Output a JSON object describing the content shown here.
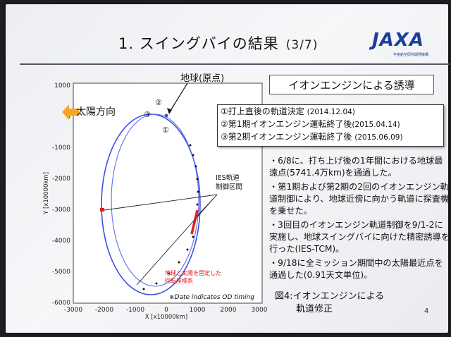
{
  "title": "1. スイングバイの結果",
  "title_page": "(3/7)",
  "logo": {
    "text": "JAXA",
    "sub": "宇宙航空研究開発機構"
  },
  "headline_box": "イオンエンジンによる誘導",
  "events": [
    {
      "label": "①打上直後の軌道決定",
      "date": "(2014.12.04)"
    },
    {
      "label": "②第1期イオンエンジン運転終了後",
      "date": "(2015.04.14)"
    },
    {
      "label": "③第2期イオンエンジン運転終了後",
      "date": "(2015.06.09)"
    }
  ],
  "bullets": [
    "・6/8に、打ち上げ後の1年間における地球最遠点(5741.4万km)を通過した。",
    "・第1期および第2期の2回のイオンエンジン軌道制御により、地球近傍に向かう軌道に探査機を乗せた。",
    "・3回目のイオンエンジン軌道制御を9/1-2に実施し、地球スイングバイに向けた精密誘導を行った(IES-TCM)。",
    "・9/18に全ミッション期間中の太陽最近点を通過した(0.91天文単位)。"
  ],
  "figure_caption_1": "図4:イオンエンジンによる",
  "figure_caption_2": "軌道修正",
  "page_number": "4",
  "plot": {
    "ylabel": "Y [x10000km]",
    "xlabel": "X [x10000km]",
    "xticks": [
      "-3000",
      "-2000",
      "-1000",
      "0",
      "1000",
      "2000",
      "3000"
    ],
    "yticks": [
      "1000",
      "0",
      "-1000",
      "-2000",
      "-3000",
      "-4000",
      "-5000",
      "-6000"
    ],
    "sun_direction": "太陽方向",
    "earth_label": "地球(原点)",
    "ies_label_1": "IES軌道",
    "ies_label_2": "制御区間",
    "red_note_1": "地球と太陽を固定した",
    "red_note_2": "回転座標系",
    "date_note": "※Date indicates OD timing",
    "marker_1": "①",
    "marker_2": "②",
    "marker_3": "③",
    "colors": {
      "orbit": "#3b4fe0",
      "control": "#e02020",
      "sun_arrow": "#f5a623"
    }
  }
}
